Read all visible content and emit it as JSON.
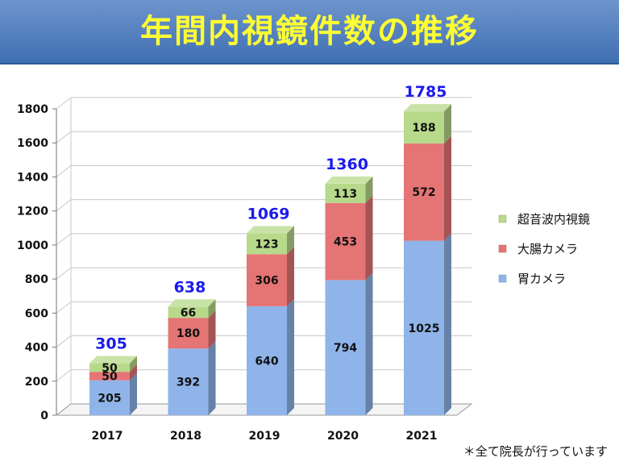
{
  "header": {
    "title": "年間内視鏡件数の推移"
  },
  "footnote": "＊全て院長が行っています",
  "colors": {
    "title_text": "#ffff33",
    "banner": "#4a7bbd",
    "total_label": "#1a1aee"
  },
  "chart_data": {
    "type": "bar",
    "stacked": true,
    "categories": [
      "2017",
      "2018",
      "2019",
      "2020",
      "2021"
    ],
    "series": [
      {
        "name": "胃カメラ",
        "values": [
          205,
          392,
          640,
          794,
          1025
        ],
        "color": "#8fb4ea"
      },
      {
        "name": "大腸カメラ",
        "values": [
          50,
          180,
          306,
          453,
          572
        ],
        "color": "#e57474"
      },
      {
        "name": "超音波内視鏡",
        "values": [
          50,
          66,
          123,
          113,
          188
        ],
        "color": "#b7d98a"
      }
    ],
    "totals": [
      305,
      638,
      1069,
      1360,
      1785
    ],
    "ylim": [
      0,
      1800
    ],
    "yticks": [
      0,
      200,
      400,
      600,
      800,
      1000,
      1200,
      1400,
      1600,
      1800
    ],
    "grid": true,
    "legend_position": "right"
  }
}
